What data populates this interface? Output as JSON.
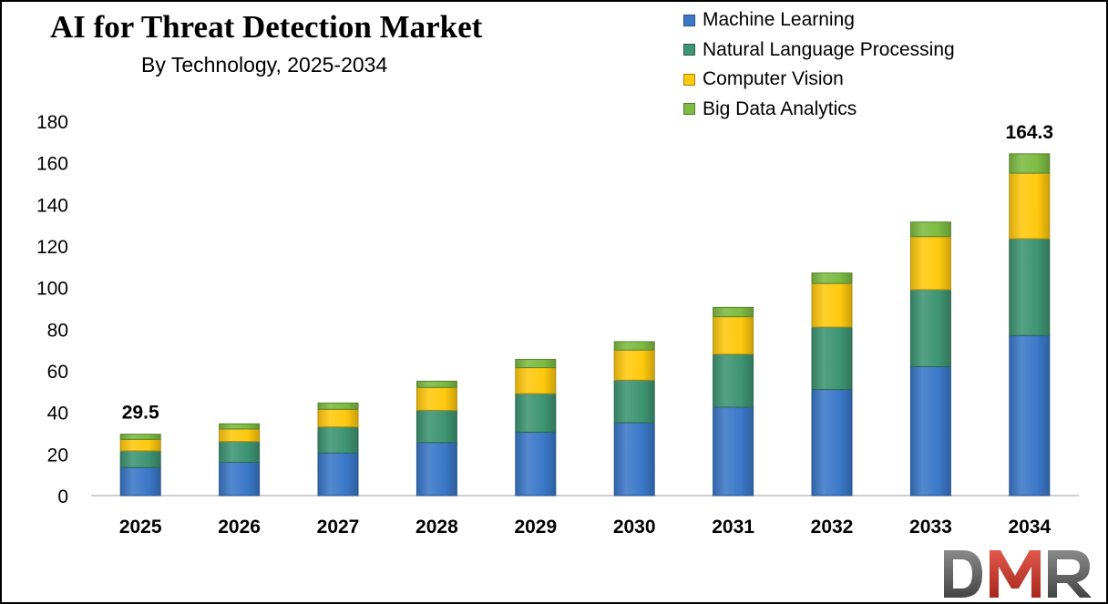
{
  "chart_data": {
    "type": "bar",
    "stacked": true,
    "title": "AI for Threat Detection Market",
    "subtitle": "By Technology,  2025-2034",
    "categories": [
      "2025",
      "2026",
      "2027",
      "2028",
      "2029",
      "2030",
      "2031",
      "2032",
      "2033",
      "2034"
    ],
    "series": [
      {
        "name": "Machine Learning",
        "color": "#3B78C8",
        "values": [
          13.5,
          16,
          20.5,
          25.5,
          30.5,
          35,
          42.5,
          51,
          62,
          77
        ]
      },
      {
        "name": "Natural Language Processing",
        "color": "#3E9473",
        "values": [
          8,
          10,
          12.5,
          15.5,
          18.5,
          20.5,
          25.5,
          30,
          37,
          46.5
        ]
      },
      {
        "name": "Computer Vision",
        "color": "#FFC90E",
        "values": [
          5.5,
          6,
          8.5,
          11,
          12.5,
          14.5,
          18,
          21,
          25.5,
          31.5
        ]
      },
      {
        "name": "Big Data Analytics",
        "color": "#7DBB42",
        "values": [
          2.5,
          2.5,
          3,
          3,
          4,
          4,
          4.5,
          5,
          7,
          9.3
        ]
      }
    ],
    "data_labels": [
      {
        "category": "2025",
        "text": "29.5"
      },
      {
        "category": "2034",
        "text": "164.3"
      }
    ],
    "ylim": [
      0,
      180
    ],
    "yticks": [
      0,
      20,
      40,
      60,
      80,
      100,
      120,
      140,
      160,
      180
    ],
    "grid": false,
    "legend_position": "top-right"
  },
  "logo": {
    "text": "DMR",
    "colors": [
      "#555555",
      "#C0392B"
    ]
  }
}
